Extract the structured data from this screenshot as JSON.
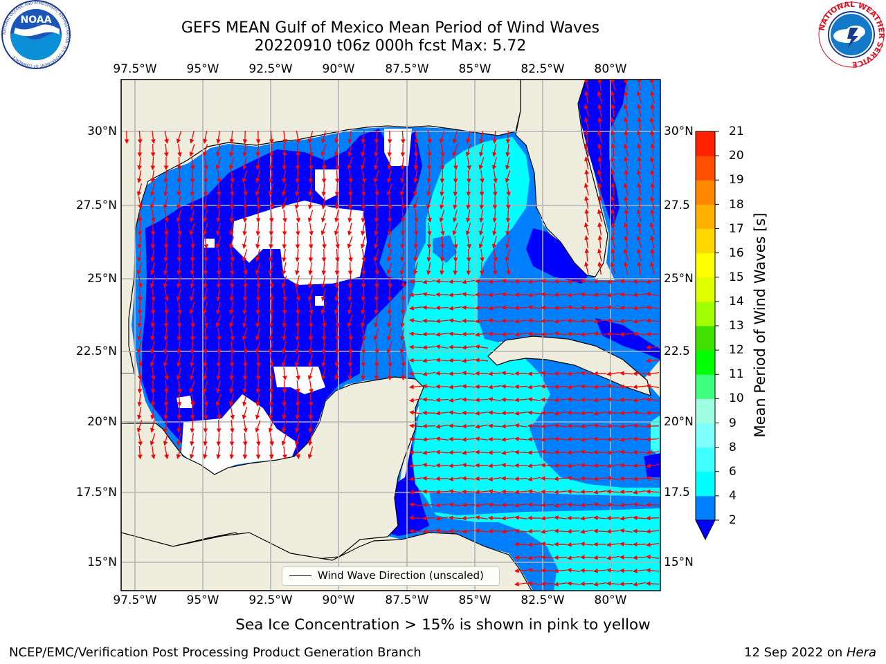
{
  "title": {
    "line1": "GEFS MEAN Gulf of Mexico Mean Period of Wind Waves",
    "line2": "20220910 t06z 000h fcst   Max: 5.72"
  },
  "map": {
    "lon_labels": [
      "97.5°W",
      "95°W",
      "92.5°W",
      "90°W",
      "87.5°W",
      "85°W",
      "82.5°W",
      "80°W"
    ],
    "lat_labels_left": [
      "30°N",
      "27.5°N",
      "25°N",
      "22.5°N",
      "20°N",
      "17.5°N",
      "15°N"
    ],
    "lat_labels_right": [
      "30°N",
      "27.5",
      "25°N",
      "22.5",
      "20°N",
      "17.5",
      "15°N"
    ],
    "extent": {
      "lon": [
        -98,
        -78
      ],
      "lat": [
        14,
        32
      ]
    },
    "land_color": "#efedde",
    "arrow_color": "#ff0000"
  },
  "legend": {
    "label": "Wind Wave Direction (unscaled)"
  },
  "colorbar": {
    "label": "Mean Period of Wind Waves [s]",
    "ticks": [
      "2",
      "4",
      "6",
      "8",
      "9",
      "10",
      "11",
      "12",
      "13",
      "14",
      "15",
      "16",
      "17",
      "18",
      "19",
      "20",
      "21"
    ],
    "colors": [
      "#0000ff",
      "#0080ff",
      "#00ffff",
      "#40ffff",
      "#80ffff",
      "#a0ffe0",
      "#40ff80",
      "#00ff00",
      "#40e000",
      "#a0ff00",
      "#e0ff00",
      "#ffff00",
      "#ffd800",
      "#ffb000",
      "#ff8800",
      "#ff5000",
      "#ff2000",
      "#ff0000"
    ]
  },
  "subtitle": "Sea Ice Concentration > 15% is shown in pink to yellow",
  "footer": {
    "left": "NCEP/EMC/Verification Post Processing Product Generation Branch",
    "date": "12 Sep 2022 on ",
    "machine": "Hera"
  },
  "logos": {
    "noaa": "NOAA",
    "noaa_ring": "NATIONAL OCEANIC AND ATMOSPHERIC ADMINISTRATION · U.S. DEPARTMENT OF COMMERCE",
    "nws_ring": "NATIONAL WEATHER SERVICE"
  }
}
